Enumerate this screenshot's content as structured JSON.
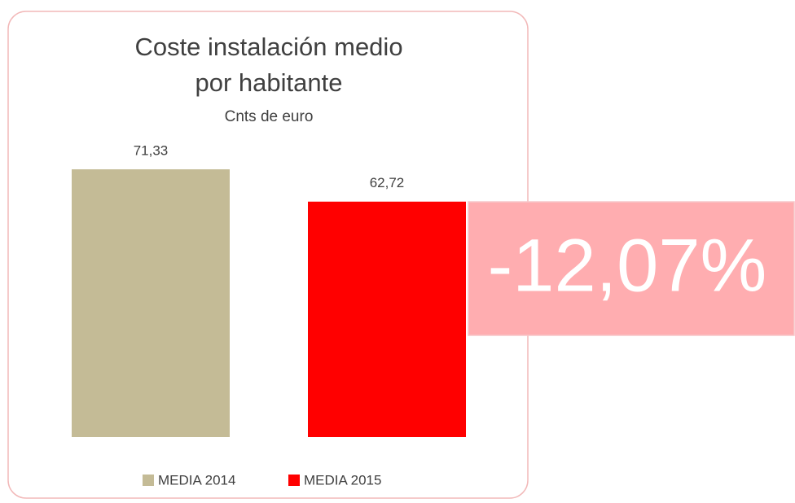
{
  "chart_data": {
    "type": "bar",
    "title": [
      "Coste instalación medio",
      "por habitante"
    ],
    "subtitle": "Cnts de euro",
    "series": [
      {
        "name": "MEDIA 2014",
        "color": "#c4bb96",
        "values": [
          71.33
        ],
        "value_labels": [
          "71,33"
        ]
      },
      {
        "name": "MEDIA 2015",
        "color": "#ff0000",
        "values": [
          62.72
        ],
        "value_labels": [
          "62,72"
        ]
      }
    ],
    "annotation": "-12,07%",
    "legend": "bottom"
  }
}
